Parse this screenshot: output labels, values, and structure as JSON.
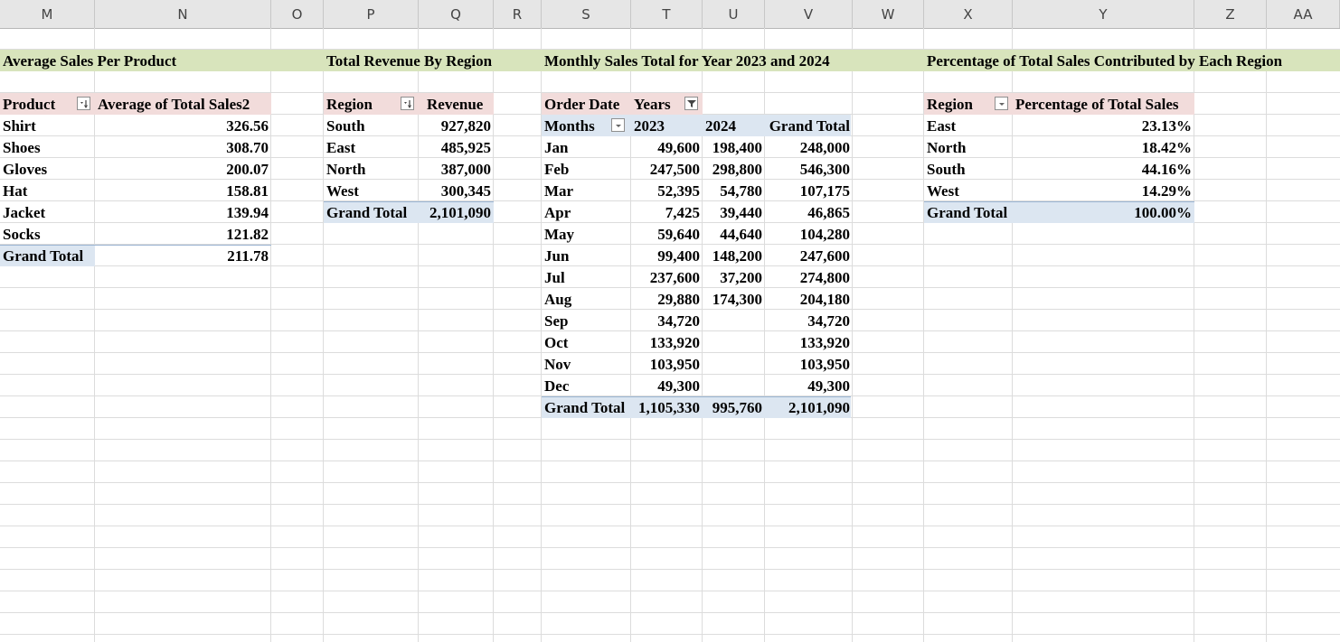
{
  "columns": [
    "M",
    "N",
    "O",
    "P",
    "Q",
    "R",
    "S",
    "T",
    "U",
    "V",
    "W",
    "X",
    "Y",
    "Z",
    "AA"
  ],
  "colors": {
    "title_band": "#d8e4bc",
    "pivot_header": "#f2dcdb",
    "grand_total": "#dce6f1",
    "col_header_row": "#dce6f1"
  },
  "avg_sales": {
    "title": "Average Sales Per Product",
    "hdr_product": "Product",
    "hdr_value": "Average of Total Sales2",
    "rows": [
      {
        "label": "Shirt",
        "value": "326.56"
      },
      {
        "label": "Shoes",
        "value": "308.70"
      },
      {
        "label": "Gloves",
        "value": "200.07"
      },
      {
        "label": "Hat",
        "value": "158.81"
      },
      {
        "label": "Jacket",
        "value": "139.94"
      },
      {
        "label": "Socks",
        "value": "121.82"
      }
    ],
    "total_label": "Grand Total",
    "total_value": "211.78"
  },
  "revenue": {
    "title": "Total Revenue By Region",
    "hdr_region": "Region",
    "hdr_value": "Revenue",
    "rows": [
      {
        "label": "South",
        "value": "927,820"
      },
      {
        "label": "East",
        "value": "485,925"
      },
      {
        "label": "North",
        "value": "387,000"
      },
      {
        "label": "West",
        "value": "300,345"
      }
    ],
    "total_label": "Grand Total",
    "total_value": "2,101,090"
  },
  "monthly": {
    "title": "Monthly Sales Total for Year 2023 and 2024",
    "filter_label": "Order Date",
    "years_label": "Years",
    "hdr_months": "Months",
    "hdr_2023": "2023",
    "hdr_2024": "2024",
    "hdr_total": "Grand Total",
    "rows": [
      {
        "m": "Jan",
        "a": "49,600",
        "b": "198,400",
        "t": "248,000"
      },
      {
        "m": "Feb",
        "a": "247,500",
        "b": "298,800",
        "t": "546,300"
      },
      {
        "m": "Mar",
        "a": "52,395",
        "b": "54,780",
        "t": "107,175"
      },
      {
        "m": "Apr",
        "a": "7,425",
        "b": "39,440",
        "t": "46,865"
      },
      {
        "m": "May",
        "a": "59,640",
        "b": "44,640",
        "t": "104,280"
      },
      {
        "m": "Jun",
        "a": "99,400",
        "b": "148,200",
        "t": "247,600"
      },
      {
        "m": "Jul",
        "a": "237,600",
        "b": "37,200",
        "t": "274,800"
      },
      {
        "m": "Aug",
        "a": "29,880",
        "b": "174,300",
        "t": "204,180"
      },
      {
        "m": "Sep",
        "a": "34,720",
        "b": "",
        "t": "34,720"
      },
      {
        "m": "Oct",
        "a": "133,920",
        "b": "",
        "t": "133,920"
      },
      {
        "m": "Nov",
        "a": "103,950",
        "b": "",
        "t": "103,950"
      },
      {
        "m": "Dec",
        "a": "49,300",
        "b": "",
        "t": "49,300"
      }
    ],
    "total_label": "Grand Total",
    "total_a": "1,105,330",
    "total_b": "995,760",
    "total_t": "2,101,090"
  },
  "percent": {
    "title": "Percentage of Total Sales Contributed by Each Region",
    "hdr_region": "Region",
    "hdr_value": "Percentage of Total Sales",
    "rows": [
      {
        "label": "East",
        "value": "23.13%"
      },
      {
        "label": "North",
        "value": "18.42%"
      },
      {
        "label": "South",
        "value": "44.16%"
      },
      {
        "label": "West",
        "value": "14.29%"
      }
    ],
    "total_label": "Grand Total",
    "total_value": "100.00%"
  }
}
